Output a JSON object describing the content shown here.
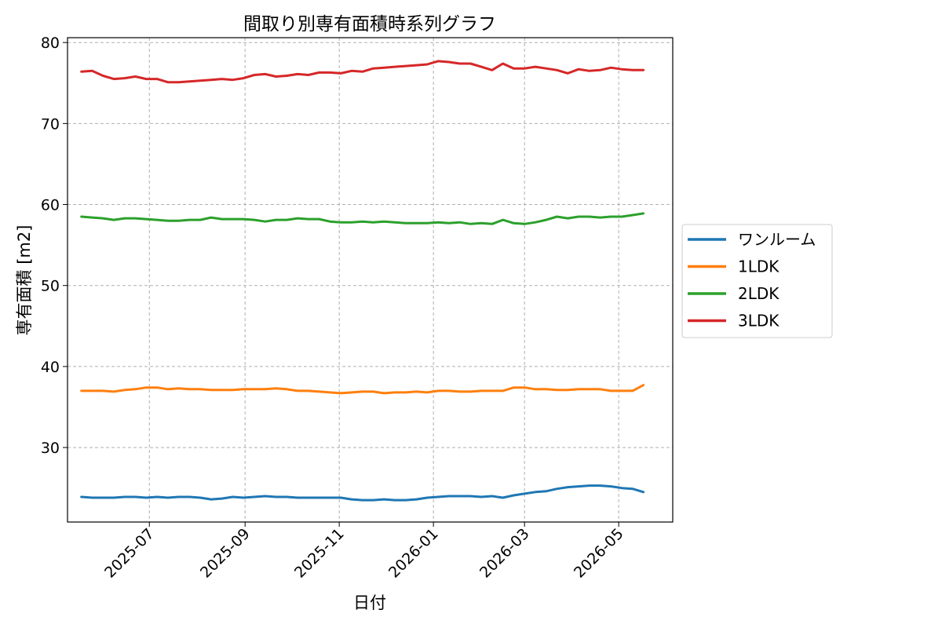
{
  "chart_data": {
    "type": "line",
    "title": "間取り別専有面積時系列グラフ",
    "xlabel": "日付",
    "ylabel": "専有面積 [m2]",
    "x_ticks": [
      "2025-07",
      "2025-09",
      "2025-11",
      "2026-01",
      "2026-03",
      "2026-05"
    ],
    "y_ticks": [
      30,
      40,
      50,
      60,
      70,
      80
    ],
    "xlim": [
      "2025-05-09",
      "2026-06-05"
    ],
    "ylim": [
      20.8,
      80.6
    ],
    "grid": true,
    "legend_position": "right",
    "x": [
      "2025-05-18",
      "2025-05-25",
      "2025-06-01",
      "2025-06-08",
      "2025-06-15",
      "2025-06-22",
      "2025-06-29",
      "2025-07-06",
      "2025-07-13",
      "2025-07-20",
      "2025-07-27",
      "2025-08-03",
      "2025-08-10",
      "2025-08-17",
      "2025-08-24",
      "2025-08-31",
      "2025-09-07",
      "2025-09-14",
      "2025-09-21",
      "2025-09-28",
      "2025-10-05",
      "2025-10-12",
      "2025-10-19",
      "2025-10-26",
      "2025-11-02",
      "2025-11-09",
      "2025-11-16",
      "2025-11-23",
      "2025-11-30",
      "2025-12-07",
      "2025-12-14",
      "2025-12-21",
      "2025-12-28",
      "2026-01-04",
      "2026-01-11",
      "2026-01-18",
      "2026-01-25",
      "2026-02-01",
      "2026-02-08",
      "2026-02-15",
      "2026-02-22",
      "2026-03-01",
      "2026-03-08",
      "2026-03-15",
      "2026-03-22",
      "2026-03-29",
      "2026-04-05",
      "2026-04-12",
      "2026-04-19",
      "2026-04-26",
      "2026-05-03",
      "2026-05-10",
      "2026-05-17"
    ],
    "series": [
      {
        "name": "ワンルーム",
        "color": "#1f77b4",
        "values": [
          23.9,
          23.8,
          23.8,
          23.8,
          23.9,
          23.9,
          23.8,
          23.9,
          23.8,
          23.9,
          23.9,
          23.8,
          23.6,
          23.7,
          23.9,
          23.8,
          23.9,
          24.0,
          23.9,
          23.9,
          23.8,
          23.8,
          23.8,
          23.8,
          23.8,
          23.6,
          23.5,
          23.5,
          23.6,
          23.5,
          23.5,
          23.6,
          23.8,
          23.9,
          24.0,
          24.0,
          24.0,
          23.9,
          24.0,
          23.8,
          24.1,
          24.3,
          24.5,
          24.6,
          24.9,
          25.1,
          25.2,
          25.3,
          25.3,
          25.2,
          25.0,
          24.9,
          24.5
        ]
      },
      {
        "name": "1LDK",
        "color": "#ff7f0e",
        "values": [
          37.0,
          37.0,
          37.0,
          36.9,
          37.1,
          37.2,
          37.4,
          37.4,
          37.2,
          37.3,
          37.2,
          37.2,
          37.1,
          37.1,
          37.1,
          37.2,
          37.2,
          37.2,
          37.3,
          37.2,
          37.0,
          37.0,
          36.9,
          36.8,
          36.7,
          36.8,
          36.9,
          36.9,
          36.7,
          36.8,
          36.8,
          36.9,
          36.8,
          37.0,
          37.0,
          36.9,
          36.9,
          37.0,
          37.0,
          37.0,
          37.4,
          37.4,
          37.2,
          37.2,
          37.1,
          37.1,
          37.2,
          37.2,
          37.2,
          37.0,
          37.0,
          37.0,
          37.7
        ]
      },
      {
        "name": "2LDK",
        "color": "#2ca02c",
        "values": [
          58.5,
          58.4,
          58.3,
          58.1,
          58.3,
          58.3,
          58.2,
          58.1,
          58.0,
          58.0,
          58.1,
          58.1,
          58.4,
          58.2,
          58.2,
          58.2,
          58.1,
          57.9,
          58.1,
          58.1,
          58.3,
          58.2,
          58.2,
          57.9,
          57.8,
          57.8,
          57.9,
          57.8,
          57.9,
          57.8,
          57.7,
          57.7,
          57.7,
          57.8,
          57.7,
          57.8,
          57.6,
          57.7,
          57.6,
          58.1,
          57.7,
          57.6,
          57.8,
          58.1,
          58.5,
          58.3,
          58.5,
          58.5,
          58.4,
          58.5,
          58.5,
          58.7,
          58.9
        ]
      },
      {
        "name": "3LDK",
        "color": "#d62728",
        "values": [
          76.4,
          76.5,
          75.9,
          75.5,
          75.6,
          75.8,
          75.5,
          75.5,
          75.1,
          75.1,
          75.2,
          75.3,
          75.4,
          75.5,
          75.4,
          75.6,
          76.0,
          76.1,
          75.8,
          75.9,
          76.1,
          76.0,
          76.3,
          76.3,
          76.2,
          76.5,
          76.4,
          76.8,
          76.9,
          77.0,
          77.1,
          77.2,
          77.3,
          77.7,
          77.6,
          77.4,
          77.4,
          77.0,
          76.6,
          77.4,
          76.8,
          76.8,
          77.0,
          76.8,
          76.6,
          76.2,
          76.7,
          76.5,
          76.6,
          76.9,
          76.7,
          76.6,
          76.6
        ]
      }
    ]
  }
}
